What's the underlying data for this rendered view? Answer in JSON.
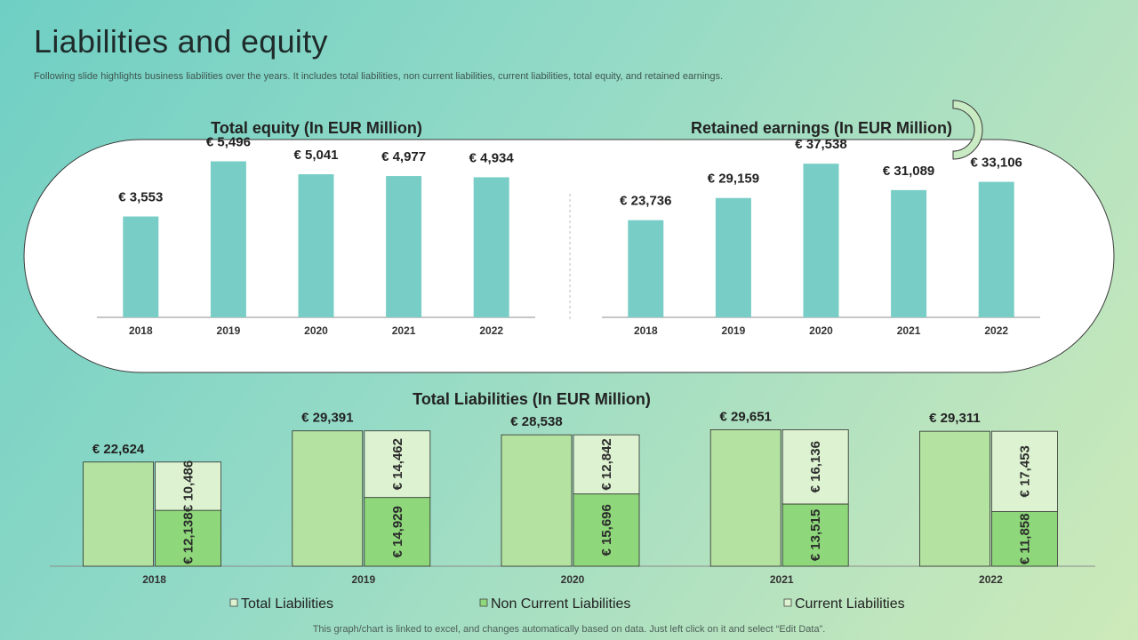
{
  "title": "Liabilities and equity",
  "subtitle": "Following slide highlights business liabilities over the years. It includes total liabilities, non current liabilities, current liabilities, total equity, and retained earnings.",
  "footer_note": "This graph/chart is linked to excel, and changes automatically based on data. Just left click on it and select “Edit Data”.",
  "colors": {
    "equity_bar": "#78cec6",
    "total_liab": "#b4e2a1",
    "noncurrent_liab": "#8ed77a",
    "current_liab": "#dcf2d0",
    "axis": "#8c8c8c"
  },
  "chart_data": [
    {
      "type": "bar",
      "title": "Total equity (In EUR Million)",
      "categories": [
        "2018",
        "2019",
        "2020",
        "2021",
        "2022"
      ],
      "values": [
        3553,
        5496,
        5041,
        4977,
        4934
      ],
      "value_labels": [
        "€ 3,553",
        "€ 5,496",
        "€ 5,041",
        "€ 4,977",
        "€ 4,934"
      ],
      "ylim": [
        0,
        6200
      ],
      "xlabel": "",
      "ylabel": "",
      "grid": false
    },
    {
      "type": "bar",
      "title": "Retained earnings (In EUR Million)",
      "categories": [
        "2018",
        "2019",
        "2020",
        "2021",
        "2022"
      ],
      "values": [
        23736,
        29159,
        37538,
        31089,
        33106
      ],
      "value_labels": [
        "€ 23,736",
        "€ 29,159",
        "€ 37,538",
        "€ 31,089",
        "€ 33,106"
      ],
      "ylim": [
        0,
        43000
      ],
      "xlabel": "",
      "ylabel": "",
      "grid": false
    },
    {
      "type": "bar",
      "title": "Total Liabilities (In EUR Million)",
      "categories": [
        "2018",
        "2019",
        "2020",
        "2021",
        "2022"
      ],
      "series": [
        {
          "name": "Total Liabilities",
          "values": [
            22624,
            29391,
            28538,
            29651,
            29311
          ],
          "labels": [
            "€ 22,624",
            "€ 29,391",
            "€ 28,538",
            "€ 29,651",
            "€ 29,311"
          ]
        },
        {
          "name": "Non Current Liabilities",
          "values": [
            12138,
            14929,
            15696,
            13515,
            11858
          ],
          "labels": [
            "€ 12,138",
            "€ 14,929",
            "€ 15,696",
            "€ 13,515",
            "€ 11,858"
          ]
        },
        {
          "name": "Current Liabilities",
          "values": [
            10486,
            14462,
            12842,
            16136,
            17453
          ],
          "labels": [
            "€ 10,486",
            "€ 14,462",
            "€ 12,842",
            "€ 16,136",
            "€ 17,453"
          ]
        }
      ],
      "stacked_series": [
        "Non Current Liabilities",
        "Current Liabilities"
      ],
      "ylim": [
        0,
        30500
      ],
      "legend": "bottom",
      "xlabel": "",
      "ylabel": "",
      "grid": false
    }
  ]
}
